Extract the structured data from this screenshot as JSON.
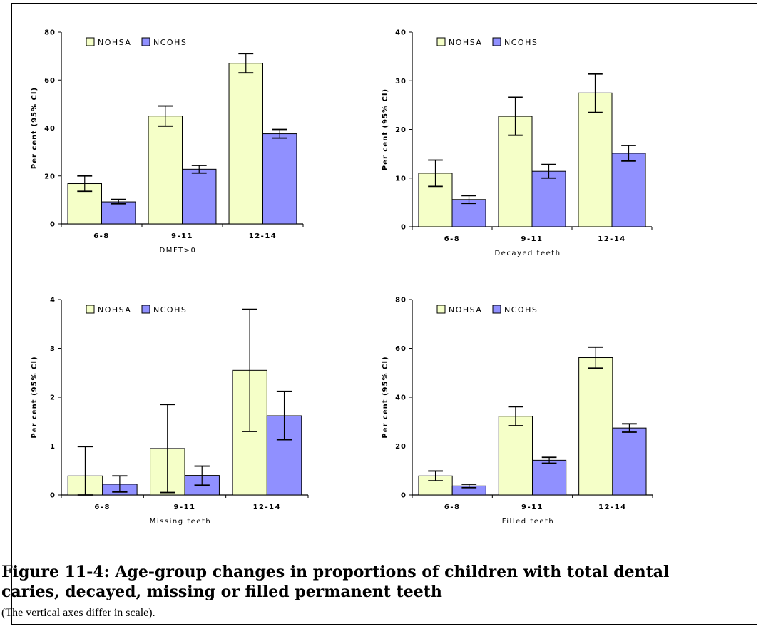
{
  "figure": {
    "caption_title": "Figure 11-4: Age-group changes in proportions of children with total dental caries, decayed, missing or filled permanent teeth",
    "caption_note": "(The vertical axes differ in scale)."
  },
  "colors": {
    "nohsa": "#f5ffc8",
    "ncohs": "#9090ff",
    "stroke": "#000000"
  },
  "chart_data": [
    {
      "type": "bar",
      "categories": [
        "6-8",
        "9-11",
        "12-14"
      ],
      "xlabel": "DMFT>0",
      "ylabel": "Per cent (95% CI)",
      "ylim": [
        0,
        80
      ],
      "yticks": [
        "0",
        "20",
        "40",
        "60",
        "80"
      ],
      "legend": "top-left",
      "series": [
        {
          "name": "NOHSA",
          "values": [
            16.8,
            45.0,
            67.0
          ],
          "ci_low": [
            13.6,
            40.8,
            63.0
          ],
          "ci_high": [
            20.0,
            49.2,
            71.0
          ]
        },
        {
          "name": "NCOHS",
          "values": [
            9.2,
            22.8,
            37.6
          ],
          "ci_low": [
            8.4,
            21.2,
            35.8
          ],
          "ci_high": [
            10.2,
            24.4,
            39.4
          ]
        }
      ]
    },
    {
      "type": "bar",
      "categories": [
        "6-8",
        "9-11",
        "12-14"
      ],
      "xlabel": "Decayed teeth",
      "ylabel": "Per cent (95% CI)",
      "ylim": [
        0,
        40
      ],
      "yticks": [
        "0",
        "10",
        "20",
        "30",
        "40"
      ],
      "legend": "top-left",
      "series": [
        {
          "name": "NOHSA",
          "values": [
            11.0,
            22.7,
            27.5
          ],
          "ci_low": [
            8.3,
            18.8,
            23.5
          ],
          "ci_high": [
            13.7,
            26.6,
            31.4
          ]
        },
        {
          "name": "NCOHS",
          "values": [
            5.6,
            11.4,
            15.1
          ],
          "ci_low": [
            4.8,
            10.0,
            13.5
          ],
          "ci_high": [
            6.4,
            12.8,
            16.7
          ]
        }
      ]
    },
    {
      "type": "bar",
      "categories": [
        "6-8",
        "9-11",
        "12-14"
      ],
      "xlabel": "Missing teeth",
      "ylabel": "Per cent (95% CI)",
      "ylim": [
        0,
        4
      ],
      "yticks": [
        "0",
        "1",
        "2",
        "3",
        "4"
      ],
      "legend": "top-left",
      "series": [
        {
          "name": "NOHSA",
          "values": [
            0.39,
            0.95,
            2.55
          ],
          "ci_low": [
            0.0,
            0.05,
            1.3
          ],
          "ci_high": [
            0.99,
            1.85,
            3.8
          ]
        },
        {
          "name": "NCOHS",
          "values": [
            0.22,
            0.4,
            1.62
          ],
          "ci_low": [
            0.06,
            0.2,
            1.13
          ],
          "ci_high": [
            0.39,
            0.59,
            2.12
          ]
        }
      ]
    },
    {
      "type": "bar",
      "categories": [
        "6-8",
        "9-11",
        "12-14"
      ],
      "xlabel": "Filled teeth",
      "ylabel": "Per cent (95% CI)",
      "ylim": [
        0,
        80
      ],
      "yticks": [
        "0",
        "20",
        "40",
        "60",
        "80"
      ],
      "legend": "top-left",
      "series": [
        {
          "name": "NOHSA",
          "values": [
            7.8,
            32.2,
            56.2
          ],
          "ci_low": [
            5.8,
            28.3,
            51.9
          ],
          "ci_high": [
            9.8,
            36.1,
            60.5
          ]
        },
        {
          "name": "NCOHS",
          "values": [
            3.7,
            14.2,
            27.4
          ],
          "ci_low": [
            3.0,
            13.0,
            25.7
          ],
          "ci_high": [
            4.4,
            15.4,
            29.1
          ]
        }
      ]
    }
  ]
}
